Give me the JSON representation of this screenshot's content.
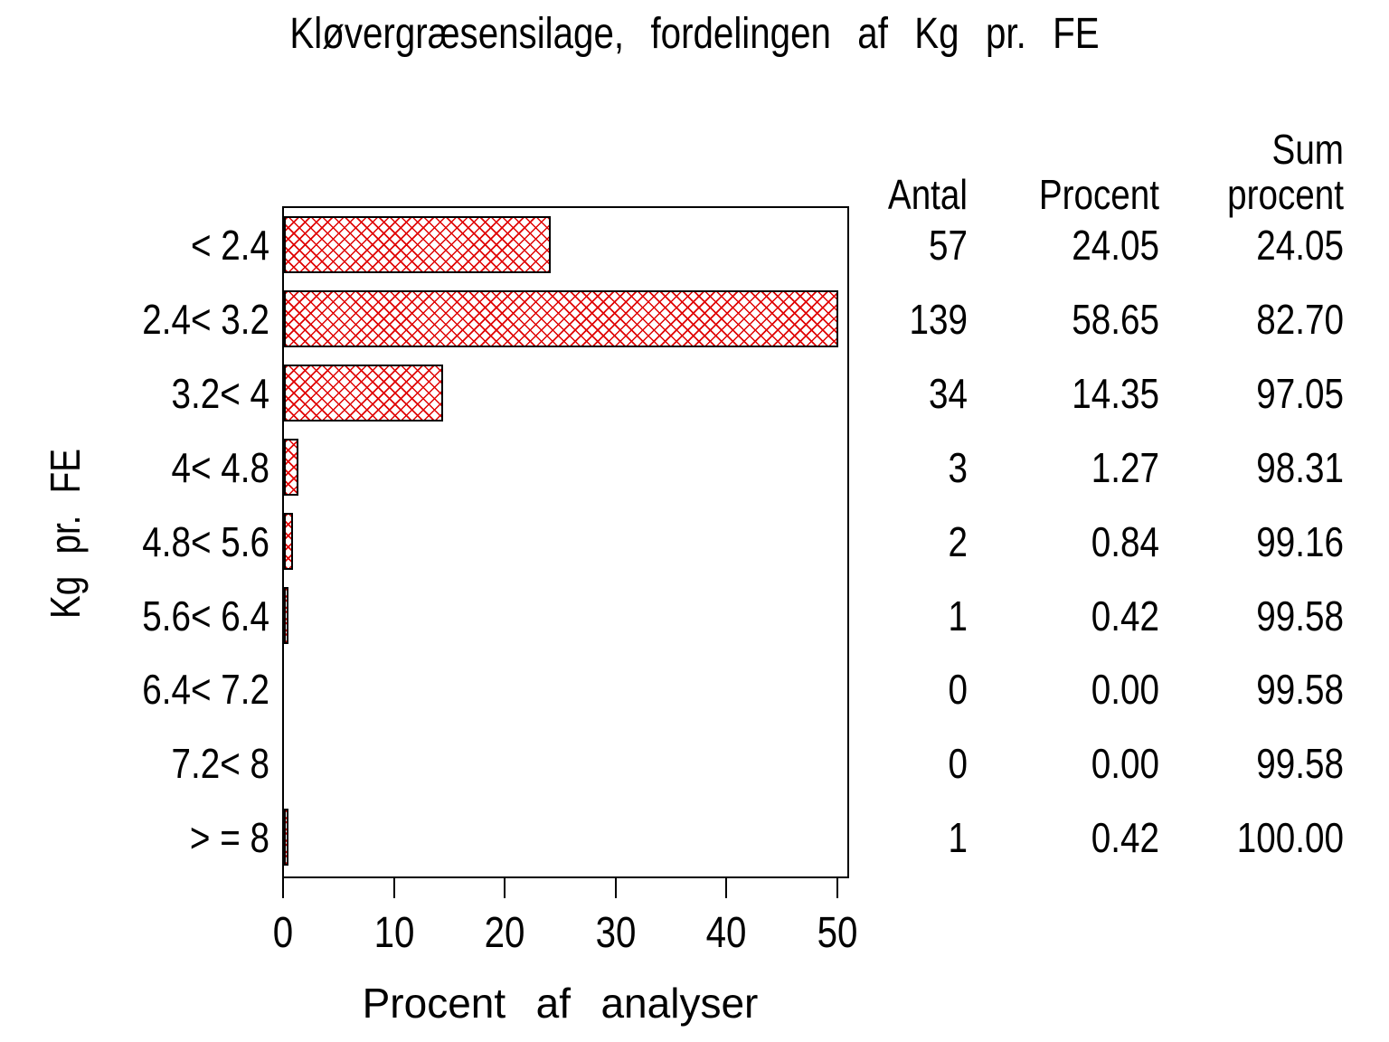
{
  "title": "Kløvergræsensilage, fordelingen af Kg pr. FE",
  "colors": {
    "hatch_red": "#e00000",
    "frame_black": "#000000",
    "background": "#ffffff"
  },
  "chart_data": {
    "type": "bar",
    "orientation": "horizontal",
    "title": "Kløvergræsensilage, fordelingen af Kg pr. FE",
    "xlabel": "Procent af analyser",
    "ylabel": "Kg pr. FE",
    "categories": [
      "< 2.4",
      "2.4< 3.2",
      "3.2< 4",
      "4< 4.8",
      "4.8< 5.6",
      "5.6< 6.4",
      "6.4< 7.2",
      "7.2< 8",
      "> = 8"
    ],
    "values": [
      24.05,
      58.65,
      14.35,
      1.27,
      0.84,
      0.42,
      0.0,
      0.0,
      0.42
    ],
    "x_ticks": [
      0,
      10,
      20,
      30,
      40,
      50
    ],
    "xlim": [
      0,
      51
    ],
    "bars_clipped_at": 50,
    "grid": false,
    "legend": "none",
    "bar_style": "red cross-hatch with black outline"
  },
  "table": {
    "headers": {
      "antal": "Antal",
      "procent": "Procent",
      "sum_line1": "Sum",
      "sum_line2": "procent"
    },
    "rows": [
      [
        "57",
        "24.05",
        "24.05"
      ],
      [
        "139",
        "58.65",
        "82.70"
      ],
      [
        "34",
        "14.35",
        "97.05"
      ],
      [
        "3",
        "1.27",
        "98.31"
      ],
      [
        "2",
        "0.84",
        "99.16"
      ],
      [
        "1",
        "0.42",
        "99.58"
      ],
      [
        "0",
        "0.00",
        "99.58"
      ],
      [
        "0",
        "0.00",
        "99.58"
      ],
      [
        "1",
        "0.42",
        "100.00"
      ]
    ]
  }
}
